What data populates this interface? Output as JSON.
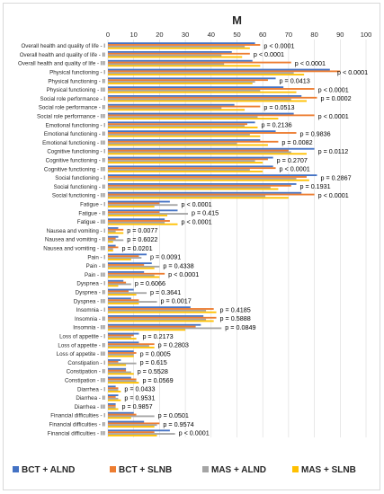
{
  "chart_data": {
    "type": "bar",
    "orientation": "horizontal",
    "title": "M",
    "xlim": [
      0,
      100
    ],
    "x_ticks": [
      0,
      10,
      20,
      30,
      40,
      50,
      60,
      70,
      80,
      90,
      100
    ],
    "grid": true,
    "legend_position": "bottom",
    "categories": [
      "Overall health and quality of life - I",
      "Overall health and quality of life - II",
      "Overall health and quality of life - III",
      "Physical functioning - I",
      "Physical functioning - II",
      "Physical functioning - III",
      "Social role performance - I",
      "Social role performance - II",
      "Social role performance - III",
      "Emotional functioning - I",
      "Emotional functioning - II",
      "Emotional functioning - III",
      "Cognitive functioning - I",
      "Cognitive functioning - II",
      "Cognitive functioning - III",
      "Social functioning - I",
      "Social functioning - II",
      "Social functioning - III",
      "Fatigue - I",
      "Fatigue - II",
      "Fatigue - III",
      "Nausea and vomiting - I",
      "Nausea and vomiting - II",
      "Nausea and vomiting - III",
      "Pain - I",
      "Pain - II",
      "Pain - III",
      "Dyspnea - I",
      "Dyspnea - II",
      "Dyspnea - III",
      "Insomnia - I",
      "Insomnia - II",
      "Insomnia - III",
      "Loss of appetite - I",
      "Loss of appetite - II",
      "Loss of appetite - III",
      "Constipation - I",
      "Constipation - II",
      "Constipation - III",
      "Diarrhea - I",
      "Diarrhea - II",
      "Diarrhea - III",
      "Financial difficulties - I",
      "Financial difficulties - II",
      "Financial difficulties - III"
    ],
    "series": [
      {
        "name": "BCT + ALND",
        "color": "#4472c4",
        "values": [
          57,
          48,
          56,
          86,
          65,
          68,
          75,
          49,
          72,
          57,
          65,
          59,
          80,
          64,
          64,
          81,
          73,
          75,
          24,
          27,
          22,
          4,
          4,
          3,
          15,
          17,
          14,
          6,
          10,
          9,
          32,
          37,
          36,
          12,
          12,
          10,
          5,
          7,
          9,
          3,
          4,
          3,
          10,
          14,
          24
        ]
      },
      {
        "name": "BCT + SLNB",
        "color": "#ed7d31",
        "values": [
          59,
          55,
          71,
          90,
          62,
          80,
          81,
          59,
          80,
          54,
          73,
          66,
          70,
          62,
          65,
          77,
          71,
          80,
          20,
          20,
          24,
          6,
          3,
          4,
          12,
          14,
          22,
          7,
          8,
          12,
          41,
          42,
          34,
          10,
          18,
          11,
          4,
          7,
          11,
          4,
          3,
          3,
          11,
          20,
          18
        ]
      },
      {
        "name": "MAS + ALND",
        "color": "#a5a5a5",
        "values": [
          53,
          44,
          45,
          72,
          57,
          59,
          71,
          44,
          58,
          53,
          55,
          50,
          71,
          57,
          55,
          73,
          63,
          61,
          27,
          31,
          22,
          3,
          6,
          2,
          13,
          20,
          18,
          9,
          15,
          19,
          38,
          38,
          44,
          9,
          16,
          10,
          11,
          9,
          11,
          4,
          4,
          3,
          18,
          19,
          26
        ]
      },
      {
        "name": "MAS + SLNB",
        "color": "#ffc000",
        "values": [
          55,
          52,
          59,
          76,
          56,
          73,
          77,
          53,
          66,
          58,
          59,
          62,
          77,
          60,
          60,
          78,
          66,
          70,
          18,
          23,
          27,
          6,
          2,
          2,
          9,
          18,
          20,
          4,
          11,
          12,
          42,
          41,
          30,
          11,
          18,
          10,
          7,
          10,
          12,
          5,
          5,
          4,
          9,
          18,
          19
        ]
      }
    ],
    "p_values": [
      "p < 0.0001",
      "p < 0.0001",
      "p < 0.0001",
      "p < 0.0001",
      "p = 0.0413",
      "p < 0.0001",
      "p = 0.0002",
      "p = 0.0513",
      "p < 0.0001",
      "p = 0.2136",
      "p = 0.9836",
      "p = 0.0082",
      "p = 0.0112",
      "p = 0.2707",
      "p < 0.0001",
      "p = 0.2867",
      "p = 0.1931",
      "p < 0.0001",
      "p < 0.0001",
      "p = 0.415",
      "p < 0.0001",
      "p = 0.0077",
      "p = 0.6022",
      "p = 0.0201",
      "p = 0.0091",
      "p = 0.4338",
      "p < 0.0001",
      "p = 0.6066",
      "p = 0.3641",
      "p = 0.0017",
      "p = 0.4185",
      "p = 0.5888",
      "p = 0.0849",
      "p = 0.2173",
      "p = 0.2803",
      "p = 0.0005",
      "p = 0.615",
      "p = 0.5528",
      "p = 0.0569",
      "p = 0.0433",
      "p = 0.9531",
      "p = 0.9857",
      "p = 0.0501",
      "p = 0.9574",
      "p < 0.0001"
    ]
  }
}
